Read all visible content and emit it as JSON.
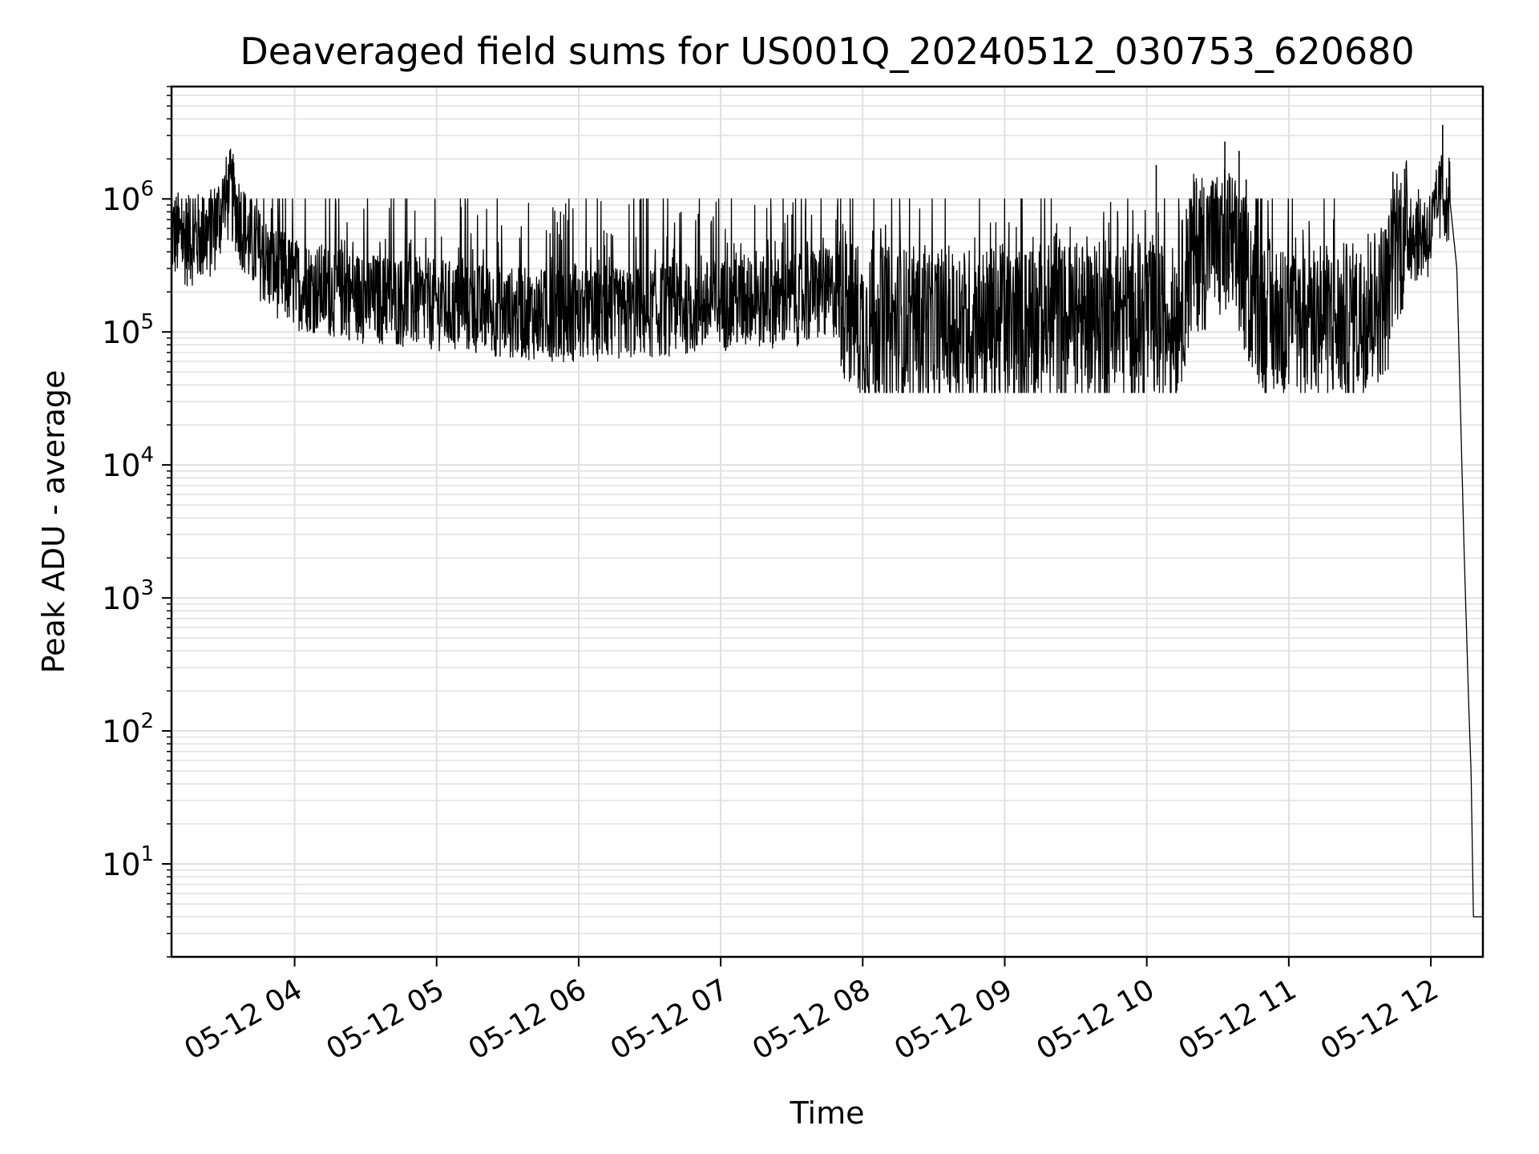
{
  "chart_data": {
    "type": "line",
    "title": "Deaveraged field sums for US001Q_20240512_030753_620680",
    "xlabel": "Time",
    "ylabel": "Peak ADU - average",
    "yscale": "log",
    "ylim": [
      2,
      7000000
    ],
    "xlim": [
      "05-12 03:08",
      "05-12 12:22"
    ],
    "grid": true,
    "line_color": "#000000",
    "grid_color": "#e0e0e0",
    "x_ticks": [
      "05-12 04",
      "05-12 05",
      "05-12 06",
      "05-12 07",
      "05-12 08",
      "05-12 09",
      "05-12 10",
      "05-12 11",
      "05-12 12"
    ],
    "y_ticks": [
      {
        "base": "10",
        "exp": "1",
        "value": 10
      },
      {
        "base": "10",
        "exp": "2",
        "value": 100
      },
      {
        "base": "10",
        "exp": "3",
        "value": 1000
      },
      {
        "base": "10",
        "exp": "4",
        "value": 10000
      },
      {
        "base": "10",
        "exp": "5",
        "value": 100000
      },
      {
        "base": "10",
        "exp": "6",
        "value": 1000000
      }
    ],
    "series": [
      {
        "points": [
          [
            "05-12 03:08",
            550000
          ],
          [
            "05-12 03:15",
            480000
          ],
          [
            "05-12 03:25",
            550000
          ],
          [
            "05-12 03:30",
            900000
          ],
          [
            "05-12 03:33",
            1100000
          ],
          [
            "05-12 03:40",
            500000
          ],
          [
            "05-12 03:50",
            300000
          ],
          [
            "05-12 04:00",
            230000
          ],
          [
            "05-12 04:30",
            180000
          ],
          [
            "05-12 05:00",
            160000
          ],
          [
            "05-12 05:30",
            140000
          ],
          [
            "05-12 06:00",
            130000
          ],
          [
            "05-12 06:30",
            140000
          ],
          [
            "05-12 07:00",
            160000
          ],
          [
            "05-12 07:30",
            170000
          ],
          [
            "05-12 07:50",
            200000
          ],
          [
            "05-12 08:00",
            110000
          ],
          [
            "05-12 08:30",
            110000
          ],
          [
            "05-12 09:00",
            110000
          ],
          [
            "05-12 09:30",
            120000
          ],
          [
            "05-12 10:00",
            120000
          ],
          [
            "05-12 10:12",
            110000
          ],
          [
            "05-12 10:20",
            400000
          ],
          [
            "05-12 10:35",
            450000
          ],
          [
            "05-12 10:40",
            300000
          ],
          [
            "05-12 10:50",
            130000
          ],
          [
            "05-12 11:00",
            110000
          ],
          [
            "05-12 11:30",
            120000
          ],
          [
            "05-12 11:42",
            200000
          ],
          [
            "05-12 11:45",
            500000
          ],
          [
            "05-12 12:00",
            550000
          ],
          [
            "05-12 12:05",
            1100000
          ],
          [
            "05-12 12:08",
            1000000
          ],
          [
            "05-12 12:11",
            300000
          ],
          [
            "05-12 12:14",
            2500
          ],
          [
            "05-12 12:16",
            160
          ],
          [
            "05-12 12:17",
            50
          ],
          [
            "05-12 12:18",
            4
          ],
          [
            "05-12 12:22",
            4
          ]
        ]
      }
    ],
    "spikes": [
      {
        "x": "05-12 03:34",
        "y": 1700000
      },
      {
        "x": "05-12 10:04",
        "y": 1800000
      },
      {
        "x": "05-12 10:33",
        "y": 2700000
      },
      {
        "x": "05-12 10:39",
        "y": 2300000
      },
      {
        "x": "05-12 10:42",
        "y": 1400000
      },
      {
        "x": "05-12 11:44",
        "y": 1600000
      },
      {
        "x": "05-12 12:05",
        "y": 3600000
      }
    ]
  }
}
